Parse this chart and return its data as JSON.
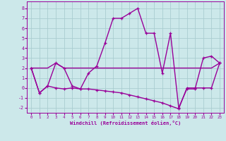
{
  "xlabel": "Windchill (Refroidissement éolien,°C)",
  "background_color": "#cce8ea",
  "line_color": "#990099",
  "grid_color": "#aacdd0",
  "x_values": [
    0,
    1,
    2,
    3,
    4,
    5,
    6,
    7,
    8,
    9,
    10,
    11,
    12,
    13,
    14,
    15,
    16,
    17,
    18,
    19,
    20,
    21,
    22,
    23
  ],
  "line1_y": [
    2.0,
    -0.5,
    0.2,
    2.5,
    2.0,
    0.2,
    -0.1,
    1.5,
    2.2,
    4.5,
    7.0,
    7.0,
    7.5,
    8.0,
    5.5,
    5.5,
    1.5,
    5.5,
    -2.0,
    -0.1,
    -0.1,
    3.0,
    3.2,
    2.5
  ],
  "line2_y": [
    2.0,
    -0.5,
    0.2,
    0.0,
    -0.1,
    0.0,
    -0.1,
    -0.1,
    -0.2,
    -0.3,
    -0.4,
    -0.5,
    -0.7,
    -0.9,
    -1.1,
    -1.3,
    -1.5,
    -1.8,
    -2.1,
    0.0,
    0.0,
    0.0,
    0.0,
    2.5
  ],
  "line3_y": [
    2.0,
    2.0,
    2.0,
    2.5,
    2.0,
    2.0,
    2.0,
    2.0,
    2.0,
    2.0,
    2.0,
    2.0,
    2.0,
    2.0,
    2.0,
    2.0,
    2.0,
    2.0,
    2.0,
    2.0,
    2.0,
    2.0,
    2.0,
    2.5
  ],
  "xlim": [
    -0.5,
    23.5
  ],
  "ylim": [
    -2.5,
    8.7
  ],
  "yticks": [
    -2,
    -1,
    0,
    1,
    2,
    3,
    4,
    5,
    6,
    7,
    8
  ],
  "xticks": [
    0,
    1,
    2,
    3,
    4,
    5,
    6,
    7,
    8,
    9,
    10,
    11,
    12,
    13,
    14,
    15,
    16,
    17,
    18,
    19,
    20,
    21,
    22,
    23
  ],
  "markersize": 3,
  "linewidth": 1.0
}
